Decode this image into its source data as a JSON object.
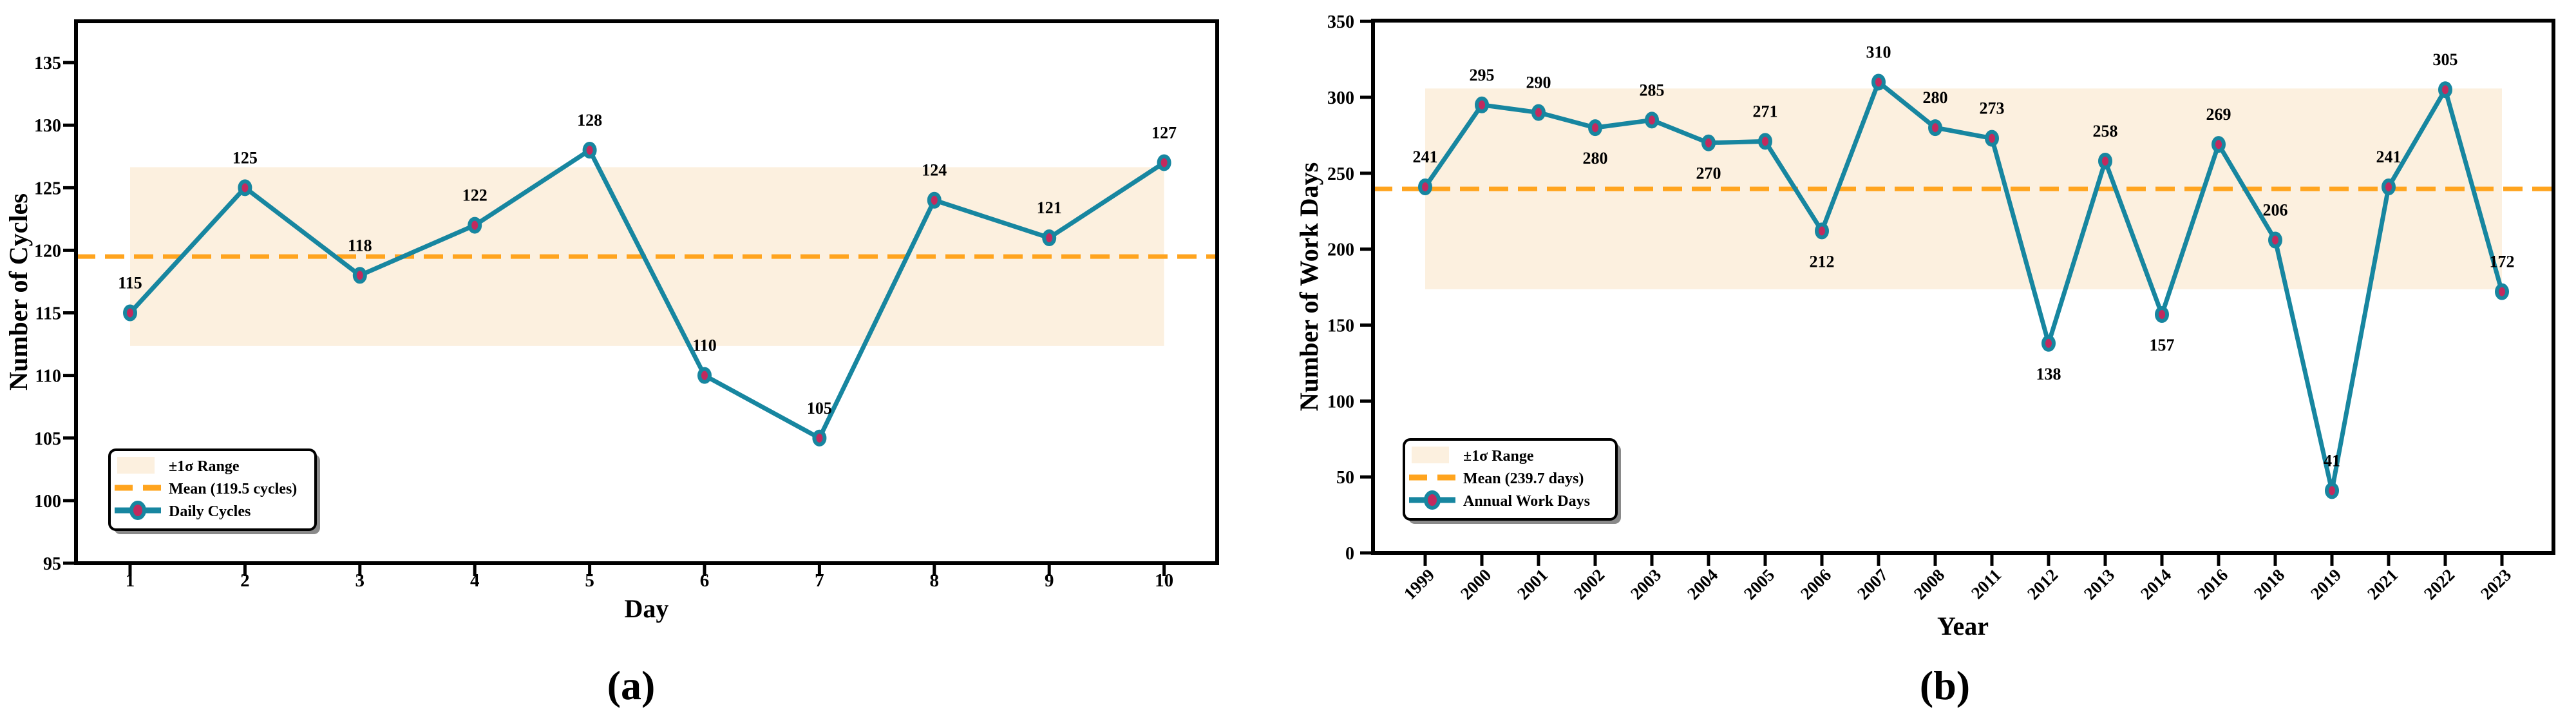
{
  "colors": {
    "series_line": "#1786A0",
    "marker_fill": "#C22A5E",
    "mean_line": "#FFA41E",
    "band_fill": "#FCF0DF",
    "axis": "#000000",
    "legend_bg": "#FFFFFF",
    "legend_shadow": "#8A8A8A"
  },
  "chart_data": [
    {
      "type": "line",
      "panel_caption": "(a)",
      "xlabel": "Day",
      "ylabel": "Number of Cycles",
      "series_name": "Daily Cycles",
      "categories": [
        "1",
        "2",
        "3",
        "4",
        "5",
        "6",
        "7",
        "8",
        "9",
        "10"
      ],
      "values": [
        115,
        125,
        118,
        122,
        128,
        110,
        105,
        124,
        121,
        127
      ],
      "point_label_positions": [
        "above",
        "above",
        "above",
        "above",
        "above",
        "above",
        "above",
        "above",
        "above",
        "above"
      ],
      "mean": 119.5,
      "std": 7.14,
      "band_low": 112.36,
      "band_high": 126.64,
      "ylim": [
        95,
        138.3
      ],
      "yticks": [
        95,
        100,
        105,
        110,
        115,
        120,
        125,
        130,
        135
      ],
      "xtick_rotation": 0,
      "grid": false,
      "legend_position": "lower-left",
      "legend": [
        "±1σ Range",
        "Mean (119.5 cycles)",
        "Daily Cycles"
      ]
    },
    {
      "type": "line",
      "panel_caption": "(b)",
      "xlabel": "Year",
      "ylabel": "Number of Work Days",
      "series_name": "Annual Work Days",
      "categories": [
        "1999",
        "2000",
        "2001",
        "2002",
        "2003",
        "2004",
        "2005",
        "2006",
        "2007",
        "2008",
        "2011",
        "2012",
        "2013",
        "2014",
        "2016",
        "2018",
        "2019",
        "2021",
        "2022",
        "2023"
      ],
      "values": [
        241,
        295,
        290,
        280,
        285,
        270,
        271,
        212,
        310,
        280,
        273,
        138,
        258,
        157,
        269,
        206,
        41,
        241,
        305,
        172
      ],
      "point_label_positions": [
        "above",
        "above",
        "above",
        "below",
        "above",
        "below",
        "above",
        "below",
        "above",
        "above",
        "above",
        "below",
        "above",
        "below",
        "above",
        "above",
        "above",
        "above",
        "above",
        "above"
      ],
      "mean": 239.7,
      "std": 66.1,
      "band_low": 173.6,
      "band_high": 305.8,
      "ylim": [
        0,
        350.5
      ],
      "yticks": [
        0,
        50,
        100,
        150,
        200,
        250,
        300,
        350
      ],
      "xtick_rotation": 45,
      "grid": false,
      "legend_position": "lower-left",
      "legend": [
        "±1σ Range",
        "Mean (239.7 days)",
        "Annual Work Days"
      ]
    }
  ]
}
